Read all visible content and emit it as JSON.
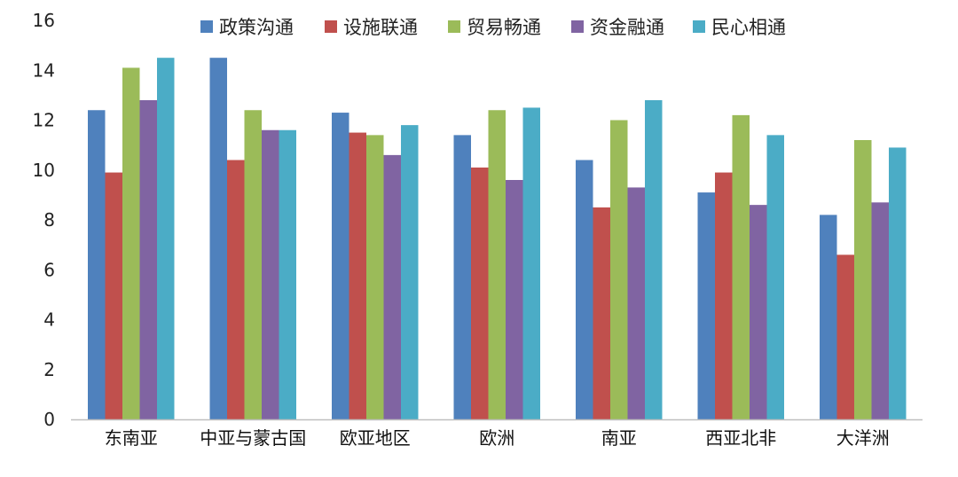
{
  "chart_data": {
    "type": "bar",
    "title": "",
    "xlabel": "",
    "ylabel": "",
    "ylim": [
      0,
      16
    ],
    "yticks": [
      0,
      2,
      4,
      6,
      8,
      10,
      12,
      14,
      16
    ],
    "grid": false,
    "legend_position": "top",
    "categories": [
      "东南亚",
      "中亚与蒙古国",
      "欧亚地区",
      "欧洲",
      "南亚",
      "西亚北非",
      "大洋洲"
    ],
    "series": [
      {
        "name": "政策沟通",
        "color": "#4f81bd",
        "values": [
          12.4,
          14.5,
          12.3,
          11.4,
          10.4,
          9.1,
          8.2
        ]
      },
      {
        "name": "设施联通",
        "color": "#c0504d",
        "values": [
          9.9,
          10.4,
          11.5,
          10.1,
          8.5,
          9.9,
          6.6
        ]
      },
      {
        "name": "贸易畅通",
        "color": "#9bbb59",
        "values": [
          14.1,
          12.4,
          11.4,
          12.4,
          12.0,
          12.2,
          11.2
        ]
      },
      {
        "name": "资金融通",
        "color": "#8064a2",
        "values": [
          12.8,
          11.6,
          10.6,
          9.6,
          9.3,
          8.6,
          8.7
        ]
      },
      {
        "name": "民心相通",
        "color": "#4bacc6",
        "values": [
          14.5,
          11.6,
          11.8,
          12.5,
          12.8,
          11.4,
          10.9
        ]
      }
    ]
  }
}
